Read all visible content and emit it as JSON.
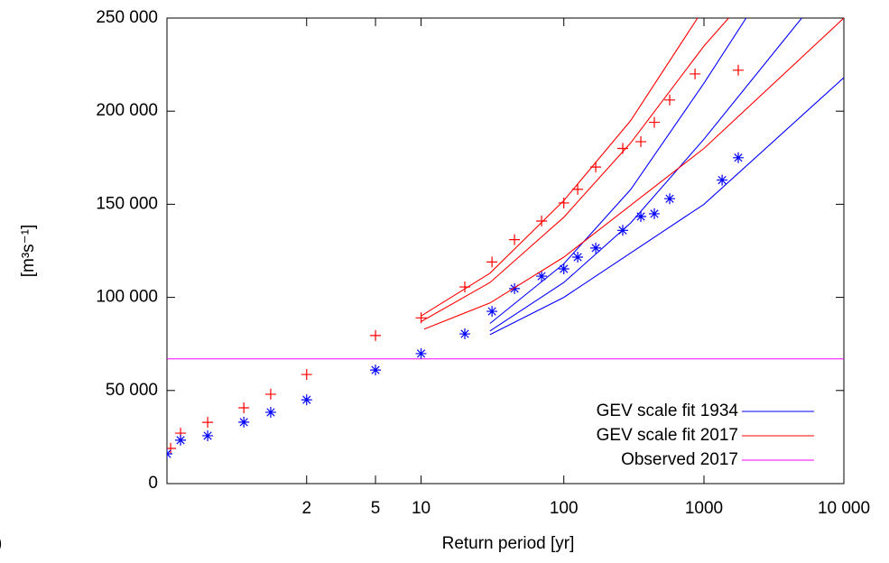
{
  "chart_data": {
    "type": "scatter",
    "xlabel": "Return period [yr]",
    "ylabel": "[m³s⁻¹]",
    "panel_label": ")",
    "xscale": "gumbel",
    "xlim": [
      1.001,
      10000
    ],
    "xticks": [
      2,
      5,
      10,
      100,
      1000,
      {
        "value": 10000,
        "label": "10 000"
      }
    ],
    "ylim": [
      0,
      250000
    ],
    "yticks": [
      0,
      {
        "value": 50000,
        "label": "50 000"
      },
      {
        "value": 100000,
        "label": "100 000"
      },
      {
        "value": 150000,
        "label": "150 000"
      },
      {
        "value": 200000,
        "label": "200 000"
      },
      {
        "value": 250000,
        "label": "250 000"
      }
    ],
    "hline": {
      "name": "Observed 2017",
      "color": "#ff00ff",
      "value": 67000
    },
    "series": [
      {
        "marker": "+",
        "color": "#ff0000",
        "x": [
          1.0015,
          1.004,
          1.03,
          1.166,
          1.4,
          2,
          5,
          10,
          20,
          31,
          44.7,
          69.5,
          100,
          125.5,
          168.8,
          263,
          354,
          442,
          569,
          863,
          1758
        ],
        "values": [
          18900,
          27100,
          32900,
          40700,
          48000,
          58600,
          79500,
          89000,
          105600,
          119000,
          131000,
          141000,
          150700,
          158000,
          170000,
          180000,
          183600,
          194000,
          206000,
          220000,
          222000
        ]
      },
      {
        "marker": "*",
        "color": "#0000ff",
        "x": [
          1.001,
          1.004,
          1.03,
          1.166,
          1.4,
          2,
          5,
          10,
          20,
          31,
          44.7,
          69.5,
          100,
          125.5,
          168.8,
          263,
          354,
          442,
          569,
          1348,
          1758
        ],
        "values": [
          16000,
          23300,
          25700,
          33000,
          38300,
          45000,
          61000,
          69800,
          80400,
          92500,
          104700,
          111400,
          115300,
          121600,
          126500,
          136000,
          143400,
          144900,
          153000,
          163000,
          175000
        ]
      },
      {
        "line": true,
        "name": "GEV scale fit 1934",
        "color": "#0000ff",
        "x": [
          30,
          100,
          300,
          1000,
          2000
        ],
        "values": [
          86000,
          118000,
          158000,
          215000,
          250000
        ]
      },
      {
        "line": true,
        "color": "#0000ff",
        "x": [
          30,
          100,
          300,
          1000,
          5000
        ],
        "values": [
          82000,
          108000,
          140000,
          185000,
          250000
        ]
      },
      {
        "line": true,
        "color": "#0000ff",
        "x": [
          30,
          100,
          1000,
          10000
        ],
        "values": [
          80000,
          100000,
          150000,
          218000
        ]
      },
      {
        "line": true,
        "name": "GEV scale fit 2017",
        "color": "#ff0000",
        "x": [
          10,
          30,
          100,
          300,
          900
        ],
        "values": [
          90000,
          113000,
          152000,
          195000,
          250000
        ]
      },
      {
        "line": true,
        "color": "#ff0000",
        "x": [
          10,
          30,
          100,
          300,
          1000,
          1500
        ],
        "values": [
          87000,
          108000,
          143000,
          183000,
          235000,
          250000
        ]
      },
      {
        "line": true,
        "color": "#ff0000",
        "x": [
          10.5,
          30,
          100,
          1000,
          10000
        ],
        "values": [
          83000,
          97000,
          121600,
          180000,
          250000
        ]
      }
    ]
  }
}
